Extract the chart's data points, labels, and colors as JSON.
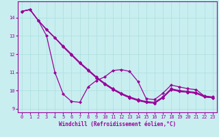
{
  "xlabel": "Windchill (Refroidissement éolien,°C)",
  "bg_color": "#c8eef0",
  "line_color": "#990099",
  "grid_color": "#aadddd",
  "xlim": [
    -0.5,
    23.5
  ],
  "ylim": [
    8.8,
    14.9
  ],
  "xticks": [
    0,
    1,
    2,
    3,
    4,
    5,
    6,
    7,
    8,
    9,
    10,
    11,
    12,
    13,
    14,
    15,
    16,
    17,
    18,
    19,
    20,
    21,
    22,
    23
  ],
  "yticks": [
    9,
    10,
    11,
    12,
    13,
    14
  ],
  "series": [
    [
      14.35,
      14.45,
      13.85,
      13.0,
      11.0,
      9.8,
      9.4,
      9.35,
      10.2,
      10.55,
      10.75,
      11.1,
      11.15,
      11.05,
      10.5,
      9.55,
      9.5,
      9.85,
      10.3,
      10.2,
      10.1,
      10.05,
      9.7,
      9.6
    ],
    [
      14.35,
      14.45,
      13.85,
      13.35,
      12.9,
      12.4,
      11.95,
      11.5,
      11.1,
      10.7,
      10.35,
      10.05,
      9.8,
      9.6,
      9.45,
      9.35,
      9.3,
      9.6,
      10.05,
      9.95,
      9.9,
      9.85,
      9.65,
      9.6
    ],
    [
      14.35,
      14.45,
      13.85,
      13.35,
      12.9,
      12.4,
      11.95,
      11.5,
      11.1,
      10.7,
      10.35,
      10.05,
      9.8,
      9.6,
      9.45,
      9.35,
      9.3,
      9.6,
      10.05,
      9.95,
      9.9,
      9.85,
      9.65,
      9.6
    ],
    [
      14.35,
      14.45,
      13.85,
      13.35,
      12.9,
      12.45,
      12.0,
      11.55,
      11.15,
      10.75,
      10.4,
      10.1,
      9.85,
      9.65,
      9.5,
      9.4,
      9.35,
      9.65,
      10.1,
      10.0,
      9.95,
      9.9,
      9.7,
      9.65
    ]
  ]
}
